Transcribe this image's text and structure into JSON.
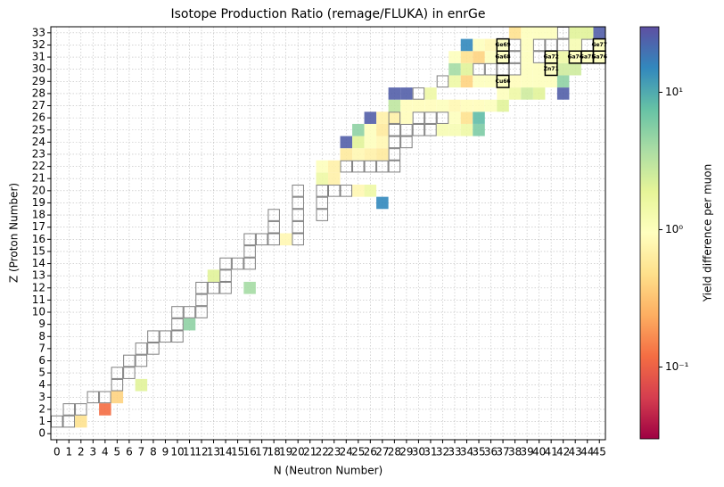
{
  "chart_data": {
    "type": "heatmap",
    "title": "Isotope Production Ratio (remage/FLUKA) in enrGe",
    "xlabel": "N (Neutron Number)",
    "ylabel": "Z (Proton Number)",
    "colorbar_label": "Yield difference per muon",
    "xlim": [
      -0.5,
      45.5
    ],
    "ylim": [
      -0.5,
      33.5
    ],
    "xticks": [
      0,
      1,
      2,
      3,
      4,
      5,
      6,
      7,
      8,
      9,
      10,
      11,
      12,
      13,
      14,
      15,
      16,
      17,
      18,
      19,
      20,
      21,
      22,
      23,
      24,
      25,
      26,
      27,
      28,
      29,
      30,
      31,
      32,
      33,
      34,
      35,
      36,
      37,
      38,
      39,
      40,
      41,
      42,
      43,
      44,
      45
    ],
    "yticks": [
      0,
      1,
      2,
      3,
      4,
      5,
      6,
      7,
      8,
      9,
      10,
      11,
      12,
      13,
      14,
      15,
      16,
      17,
      18,
      19,
      20,
      21,
      22,
      23,
      24,
      25,
      26,
      27,
      28,
      29,
      30,
      31,
      32,
      33
    ],
    "grid": true,
    "log_color_scale": true,
    "clim": [
      0.03,
      30
    ],
    "cticks": [
      {
        "value": 0.1,
        "label": "10⁻¹"
      },
      {
        "value": 1,
        "label": "10⁰"
      },
      {
        "value": 10,
        "label": "10¹"
      }
    ],
    "colormap": [
      "#9e0142",
      "#d53e4f",
      "#f46d43",
      "#fdae61",
      "#fee08b",
      "#ffffbf",
      "#e6f598",
      "#abdda4",
      "#66c2a5",
      "#3288bd",
      "#5e4fa2"
    ],
    "outline_color": "#808080",
    "cells": [
      {
        "n": 2,
        "z": 1,
        "value": 0.5
      },
      {
        "n": 4,
        "z": 2,
        "value": 0.12
      },
      {
        "n": 5,
        "z": 3,
        "value": 0.4
      },
      {
        "n": 7,
        "z": 4,
        "value": 2
      },
      {
        "n": 11,
        "z": 9,
        "value": 5
      },
      {
        "n": 13,
        "z": 13,
        "value": 2
      },
      {
        "n": 16,
        "z": 12,
        "value": 4
      },
      {
        "n": 19,
        "z": 16,
        "value": 0.8
      },
      {
        "n": 27,
        "z": 19,
        "value": 15
      },
      {
        "n": 25,
        "z": 20,
        "value": 0.8
      },
      {
        "n": 26,
        "z": 20,
        "value": 1.5
      },
      {
        "n": 22,
        "z": 21,
        "value": 1.5
      },
      {
        "n": 23,
        "z": 21,
        "value": 0.7
      },
      {
        "n": 22,
        "z": 22,
        "value": 1
      },
      {
        "n": 23,
        "z": 22,
        "value": 0.7
      },
      {
        "n": 24,
        "z": 23,
        "value": 0.6
      },
      {
        "n": 25,
        "z": 23,
        "value": 0.8
      },
      {
        "n": 26,
        "z": 23,
        "value": 0.7
      },
      {
        "n": 27,
        "z": 23,
        "value": 0.6
      },
      {
        "n": 24,
        "z": 24,
        "value": 25
      },
      {
        "n": 25,
        "z": 24,
        "value": 2
      },
      {
        "n": 26,
        "z": 24,
        "value": 1
      },
      {
        "n": 27,
        "z": 24,
        "value": 0.8
      },
      {
        "n": 25,
        "z": 25,
        "value": 5
      },
      {
        "n": 26,
        "z": 25,
        "value": 1
      },
      {
        "n": 27,
        "z": 25,
        "value": 0.6
      },
      {
        "n": 32,
        "z": 25,
        "value": 1.2
      },
      {
        "n": 33,
        "z": 25,
        "value": 1.2
      },
      {
        "n": 34,
        "z": 25,
        "value": 1.5
      },
      {
        "n": 35,
        "z": 25,
        "value": 6
      },
      {
        "n": 26,
        "z": 26,
        "value": 25
      },
      {
        "n": 27,
        "z": 26,
        "value": 0.7
      },
      {
        "n": 28,
        "z": 26,
        "value": 0.7
      },
      {
        "n": 29,
        "z": 26,
        "value": 0.9
      },
      {
        "n": 33,
        "z": 26,
        "value": 1
      },
      {
        "n": 34,
        "z": 26,
        "value": 0.5
      },
      {
        "n": 35,
        "z": 26,
        "value": 8
      },
      {
        "n": 28,
        "z": 27,
        "value": 3
      },
      {
        "n": 29,
        "z": 27,
        "value": 0.9
      },
      {
        "n": 30,
        "z": 27,
        "value": 0.9
      },
      {
        "n": 31,
        "z": 27,
        "value": 0.9
      },
      {
        "n": 32,
        "z": 27,
        "value": 1
      },
      {
        "n": 33,
        "z": 27,
        "value": 0.8
      },
      {
        "n": 34,
        "z": 27,
        "value": 0.9
      },
      {
        "n": 35,
        "z": 27,
        "value": 0.9
      },
      {
        "n": 36,
        "z": 27,
        "value": 1
      },
      {
        "n": 37,
        "z": 27,
        "value": 2
      },
      {
        "n": 28,
        "z": 28,
        "value": 25
      },
      {
        "n": 29,
        "z": 28,
        "value": 25
      },
      {
        "n": 31,
        "z": 28,
        "value": 1.5
      },
      {
        "n": 37,
        "z": 28,
        "value": 1
      },
      {
        "n": 38,
        "z": 28,
        "value": 1.5
      },
      {
        "n": 39,
        "z": 28,
        "value": 2.5
      },
      {
        "n": 40,
        "z": 28,
        "value": 2
      },
      {
        "n": 42,
        "z": 28,
        "value": 25
      },
      {
        "n": 33,
        "z": 29,
        "value": 1.5
      },
      {
        "n": 34,
        "z": 29,
        "value": 0.4
      },
      {
        "n": 35,
        "z": 29,
        "value": 1
      },
      {
        "n": 36,
        "z": 29,
        "value": 1
      },
      {
        "n": 37,
        "z": 29,
        "value": 1
      },
      {
        "n": 38,
        "z": 29,
        "value": 0.9
      },
      {
        "n": 39,
        "z": 29,
        "value": 1
      },
      {
        "n": 40,
        "z": 29,
        "value": 1
      },
      {
        "n": 41,
        "z": 29,
        "value": 1
      },
      {
        "n": 42,
        "z": 29,
        "value": 5
      },
      {
        "n": 33,
        "z": 30,
        "value": 4
      },
      {
        "n": 34,
        "z": 30,
        "value": 2
      },
      {
        "n": 39,
        "z": 30,
        "value": 1
      },
      {
        "n": 40,
        "z": 30,
        "value": 1
      },
      {
        "n": 41,
        "z": 30,
        "value": 1
      },
      {
        "n": 42,
        "z": 30,
        "value": 2.5
      },
      {
        "n": 43,
        "z": 30,
        "value": 2.5
      },
      {
        "n": 33,
        "z": 31,
        "value": 1
      },
      {
        "n": 34,
        "z": 31,
        "value": 0.5
      },
      {
        "n": 35,
        "z": 31,
        "value": 0.4
      },
      {
        "n": 36,
        "z": 31,
        "value": 1
      },
      {
        "n": 37,
        "z": 31,
        "value": 1
      },
      {
        "n": 39,
        "z": 31,
        "value": 1
      },
      {
        "n": 41,
        "z": 31,
        "value": 1
      },
      {
        "n": 42,
        "z": 31,
        "value": 1.5
      },
      {
        "n": 43,
        "z": 31,
        "value": 1
      },
      {
        "n": 44,
        "z": 31,
        "value": 1
      },
      {
        "n": 45,
        "z": 31,
        "value": 1
      },
      {
        "n": 34,
        "z": 32,
        "value": 15
      },
      {
        "n": 35,
        "z": 32,
        "value": 1
      },
      {
        "n": 36,
        "z": 32,
        "value": 0.8
      },
      {
        "n": 37,
        "z": 32,
        "value": 1
      },
      {
        "n": 39,
        "z": 32,
        "value": 1
      },
      {
        "n": 43,
        "z": 32,
        "value": 1.2
      },
      {
        "n": 45,
        "z": 32,
        "value": 1
      },
      {
        "n": 38,
        "z": 33,
        "value": 0.5
      },
      {
        "n": 39,
        "z": 33,
        "value": 1
      },
      {
        "n": 40,
        "z": 33,
        "value": 1
      },
      {
        "n": 41,
        "z": 33,
        "value": 1
      },
      {
        "n": 43,
        "z": 33,
        "value": 2
      },
      {
        "n": 44,
        "z": 33,
        "value": 2
      },
      {
        "n": 45,
        "z": 33,
        "value": 25
      }
    ],
    "outlined": [
      {
        "n": 0,
        "z": 1
      },
      {
        "n": 1,
        "z": 1
      },
      {
        "n": 1,
        "z": 2
      },
      {
        "n": 2,
        "z": 2
      },
      {
        "n": 3,
        "z": 3
      },
      {
        "n": 4,
        "z": 3
      },
      {
        "n": 5,
        "z": 4
      },
      {
        "n": 5,
        "z": 5
      },
      {
        "n": 6,
        "z": 5
      },
      {
        "n": 6,
        "z": 6
      },
      {
        "n": 7,
        "z": 6
      },
      {
        "n": 7,
        "z": 7
      },
      {
        "n": 8,
        "z": 7
      },
      {
        "n": 8,
        "z": 8
      },
      {
        "n": 9,
        "z": 8
      },
      {
        "n": 10,
        "z": 8
      },
      {
        "n": 10,
        "z": 9
      },
      {
        "n": 10,
        "z": 10
      },
      {
        "n": 11,
        "z": 10
      },
      {
        "n": 12,
        "z": 10
      },
      {
        "n": 12,
        "z": 11
      },
      {
        "n": 12,
        "z": 12
      },
      {
        "n": 13,
        "z": 12
      },
      {
        "n": 14,
        "z": 12
      },
      {
        "n": 14,
        "z": 13
      },
      {
        "n": 14,
        "z": 14
      },
      {
        "n": 15,
        "z": 14
      },
      {
        "n": 16,
        "z": 14
      },
      {
        "n": 16,
        "z": 15
      },
      {
        "n": 16,
        "z": 16
      },
      {
        "n": 17,
        "z": 16
      },
      {
        "n": 18,
        "z": 16
      },
      {
        "n": 20,
        "z": 16
      },
      {
        "n": 18,
        "z": 17
      },
      {
        "n": 20,
        "z": 17
      },
      {
        "n": 18,
        "z": 18
      },
      {
        "n": 20,
        "z": 18
      },
      {
        "n": 22,
        "z": 18
      },
      {
        "n": 20,
        "z": 19
      },
      {
        "n": 22,
        "z": 19
      },
      {
        "n": 20,
        "z": 20
      },
      {
        "n": 22,
        "z": 20
      },
      {
        "n": 23,
        "z": 20
      },
      {
        "n": 24,
        "z": 20
      },
      {
        "n": 24,
        "z": 22
      },
      {
        "n": 25,
        "z": 22
      },
      {
        "n": 26,
        "z": 22
      },
      {
        "n": 27,
        "z": 22
      },
      {
        "n": 28,
        "z": 22
      },
      {
        "n": 28,
        "z": 23
      },
      {
        "n": 28,
        "z": 24
      },
      {
        "n": 29,
        "z": 24
      },
      {
        "n": 28,
        "z": 25
      },
      {
        "n": 29,
        "z": 25
      },
      {
        "n": 30,
        "z": 25
      },
      {
        "n": 31,
        "z": 25
      },
      {
        "n": 28,
        "z": 26
      },
      {
        "n": 30,
        "z": 26
      },
      {
        "n": 31,
        "z": 26
      },
      {
        "n": 32,
        "z": 26
      },
      {
        "n": 30,
        "z": 28
      },
      {
        "n": 32,
        "z": 29
      },
      {
        "n": 35,
        "z": 30
      },
      {
        "n": 36,
        "z": 30
      },
      {
        "n": 37,
        "z": 30
      },
      {
        "n": 38,
        "z": 30
      },
      {
        "n": 38,
        "z": 31
      },
      {
        "n": 40,
        "z": 31
      },
      {
        "n": 38,
        "z": 32
      },
      {
        "n": 40,
        "z": 32
      },
      {
        "n": 41,
        "z": 32
      },
      {
        "n": 42,
        "z": 32
      },
      {
        "n": 44,
        "z": 32
      },
      {
        "n": 42,
        "z": 33
      }
    ],
    "annotations": [
      {
        "n": 37,
        "z": 32,
        "text": "Ge69"
      },
      {
        "n": 37,
        "z": 31,
        "text": "Ga68"
      },
      {
        "n": 37,
        "z": 29,
        "text": "Cu66"
      },
      {
        "n": 41,
        "z": 31,
        "text": "Ga72"
      },
      {
        "n": 41,
        "z": 30,
        "text": "Zn71"
      },
      {
        "n": 43,
        "z": 31,
        "text": "Ga74"
      },
      {
        "n": 44,
        "z": 31,
        "text": "Ga75"
      },
      {
        "n": 45,
        "z": 31,
        "text": "Ga76"
      },
      {
        "n": 45,
        "z": 32,
        "text": "Ge77"
      }
    ]
  }
}
